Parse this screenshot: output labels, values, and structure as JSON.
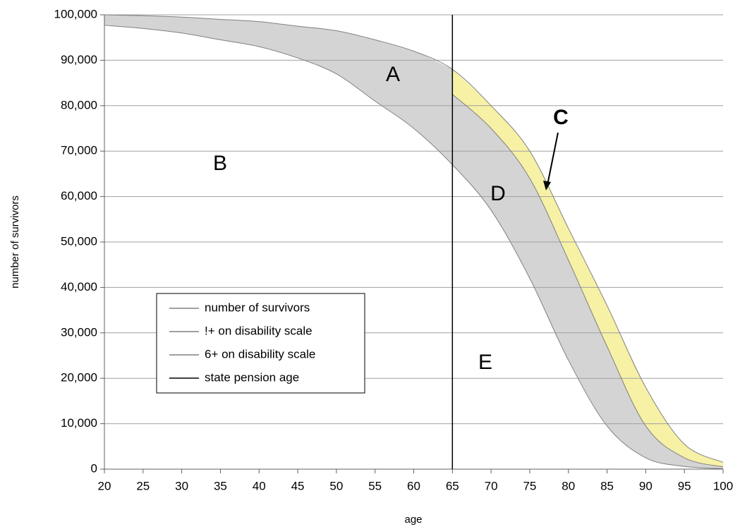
{
  "chart_data": {
    "type": "line",
    "x_label": "age",
    "y_label": "number of survivors",
    "x": [
      20,
      25,
      30,
      35,
      40,
      45,
      50,
      55,
      60,
      65,
      70,
      75,
      80,
      85,
      90,
      95,
      100
    ],
    "series": [
      {
        "name": "number of survivors",
        "color": "#808080",
        "values": [
          100000,
          99800,
          99500,
          99000,
          98500,
          97500,
          96500,
          94500,
          92000,
          88000,
          80000,
          70000,
          53000,
          36000,
          18000,
          5500,
          1500
        ]
      },
      {
        "name": "!+ on disability scale",
        "color": "#808080",
        "values": [
          97700,
          97000,
          96000,
          94500,
          93000,
          90500,
          87000,
          81000,
          75000,
          67000,
          57000,
          42000,
          24000,
          9500,
          2500,
          600,
          100
        ]
      },
      {
        "name": "6+ on disability scale",
        "color": "#808080",
        "values": [
          null,
          null,
          null,
          null,
          null,
          null,
          null,
          null,
          null,
          82500,
          75000,
          64000,
          46000,
          27000,
          9500,
          2500,
          500
        ]
      }
    ],
    "reference_lines": [
      {
        "name": "state pension age",
        "x": 65,
        "color": "#000000"
      }
    ],
    "fills": [
      "#d4d4d4",
      "#f6f1a5"
    ],
    "annotations": [
      "A",
      "B",
      "C",
      "D",
      "E"
    ],
    "xlim": [
      20,
      100
    ],
    "ylim": [
      0,
      100000
    ],
    "xticks": [
      20,
      25,
      30,
      35,
      40,
      45,
      50,
      55,
      60,
      65,
      70,
      75,
      80,
      85,
      90,
      95,
      100
    ],
    "yticks": [
      0,
      {
        "value": 10000,
        "label": "10,000"
      },
      {
        "value": 20000,
        "label": "20,000"
      },
      {
        "value": 30000,
        "label": "30,000"
      },
      {
        "value": 40000,
        "label": "40,000"
      },
      {
        "value": 50000,
        "label": "50,000"
      },
      {
        "value": 60000,
        "label": "60,000"
      },
      {
        "value": 70000,
        "label": "70,000"
      },
      {
        "value": 80000,
        "label": "80,000"
      },
      {
        "value": 90000,
        "label": "90,000"
      },
      {
        "value": 100000,
        "label": "100,000"
      }
    ],
    "grid": true
  }
}
